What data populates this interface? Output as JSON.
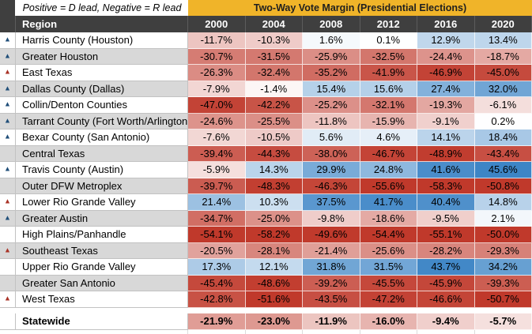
{
  "meta": {
    "note": "Positive = D lead, Negative = R lead",
    "title": "Two-Way Vote Margin (Presidential Elections)"
  },
  "columns": {
    "region_header": "Region",
    "years": [
      "2000",
      "2004",
      "2008",
      "2012",
      "2016",
      "2020"
    ]
  },
  "colors": {
    "title_background": "#f0b429",
    "title_text": "#1f1f1f",
    "header_background": "#3f3f3f",
    "header_text": "#ffffff",
    "row_stripe": "#d8d8d8",
    "scale_negative_max": "#c0392b",
    "scale_mid": "#ffffff",
    "scale_positive_max": "#3d85c6",
    "triangle_blue": "#1f4e79",
    "triangle_red": "#a93226"
  },
  "icons": {
    "triangle_up_glyph": "▲"
  },
  "scale": {
    "negative_full_at": -50,
    "positive_full_at": 45
  },
  "rows": [
    {
      "region": "Harris County (Houston)",
      "trend": "up-blue",
      "values": [
        -11.7,
        -10.3,
        1.6,
        0.1,
        12.9,
        13.4
      ]
    },
    {
      "region": "Greater Houston",
      "trend": "up-blue",
      "values": [
        -30.7,
        -31.5,
        -25.9,
        -32.5,
        -24.4,
        -18.7
      ]
    },
    {
      "region": "East Texas",
      "trend": "up-red",
      "values": [
        -26.3,
        -32.4,
        -35.2,
        -41.9,
        -46.9,
        -45.0
      ]
    },
    {
      "region": "Dallas County (Dallas)",
      "trend": "up-blue",
      "values": [
        -7.9,
        -1.4,
        15.4,
        15.6,
        27.4,
        32.0
      ]
    },
    {
      "region": "Collin/Denton Counties",
      "trend": "up-blue",
      "values": [
        -47.0,
        -42.2,
        -25.2,
        -32.1,
        -19.3,
        -6.1
      ]
    },
    {
      "region": "Tarrant County (Fort Worth/Arlington)",
      "trend": "up-blue",
      "values": [
        -24.6,
        -25.5,
        -11.8,
        -15.9,
        -9.1,
        0.2
      ]
    },
    {
      "region": "Bexar County (San Antonio)",
      "trend": "up-blue",
      "values": [
        -7.6,
        -10.5,
        5.6,
        4.6,
        14.1,
        18.4
      ]
    },
    {
      "region": "Central Texas",
      "trend": null,
      "values": [
        -39.4,
        -44.3,
        -38.0,
        -46.7,
        -48.9,
        -43.4
      ]
    },
    {
      "region": "Travis County (Austin)",
      "trend": "up-blue",
      "values": [
        -5.9,
        14.3,
        29.9,
        24.8,
        41.6,
        45.6
      ]
    },
    {
      "region": "Outer DFW Metroplex",
      "trend": null,
      "values": [
        -39.7,
        -48.3,
        -46.3,
        -55.6,
        -58.3,
        -50.8
      ]
    },
    {
      "region": "Lower Rio Grande Valley",
      "trend": "up-red",
      "values": [
        21.4,
        10.3,
        37.5,
        41.7,
        40.4,
        14.8
      ]
    },
    {
      "region": "Greater Austin",
      "trend": "up-blue",
      "values": [
        -34.7,
        -25.0,
        -9.8,
        -18.6,
        -9.5,
        2.1
      ]
    },
    {
      "region": "High Plains/Panhandle",
      "trend": null,
      "values": [
        -54.1,
        -58.2,
        -49.6,
        -54.4,
        -55.1,
        -50.0
      ]
    },
    {
      "region": "Southeast Texas",
      "trend": "up-red",
      "values": [
        -20.5,
        -28.1,
        -21.4,
        -25.6,
        -28.2,
        -29.3
      ]
    },
    {
      "region": "Upper Rio Grande Valley",
      "trend": null,
      "values": [
        17.3,
        12.1,
        31.8,
        31.5,
        43.7,
        34.2
      ]
    },
    {
      "region": "Greater San Antonio",
      "trend": null,
      "values": [
        -45.4,
        -48.6,
        -39.2,
        -45.5,
        -45.9,
        -39.3
      ]
    },
    {
      "region": "West Texas",
      "trend": "up-red",
      "values": [
        -42.8,
        -51.6,
        -43.5,
        -47.2,
        -46.6,
        -50.7
      ]
    }
  ],
  "footer": {
    "region": "Statewide",
    "values": [
      -21.9,
      -23.0,
      -11.9,
      -16.0,
      -9.4,
      -5.7
    ]
  }
}
